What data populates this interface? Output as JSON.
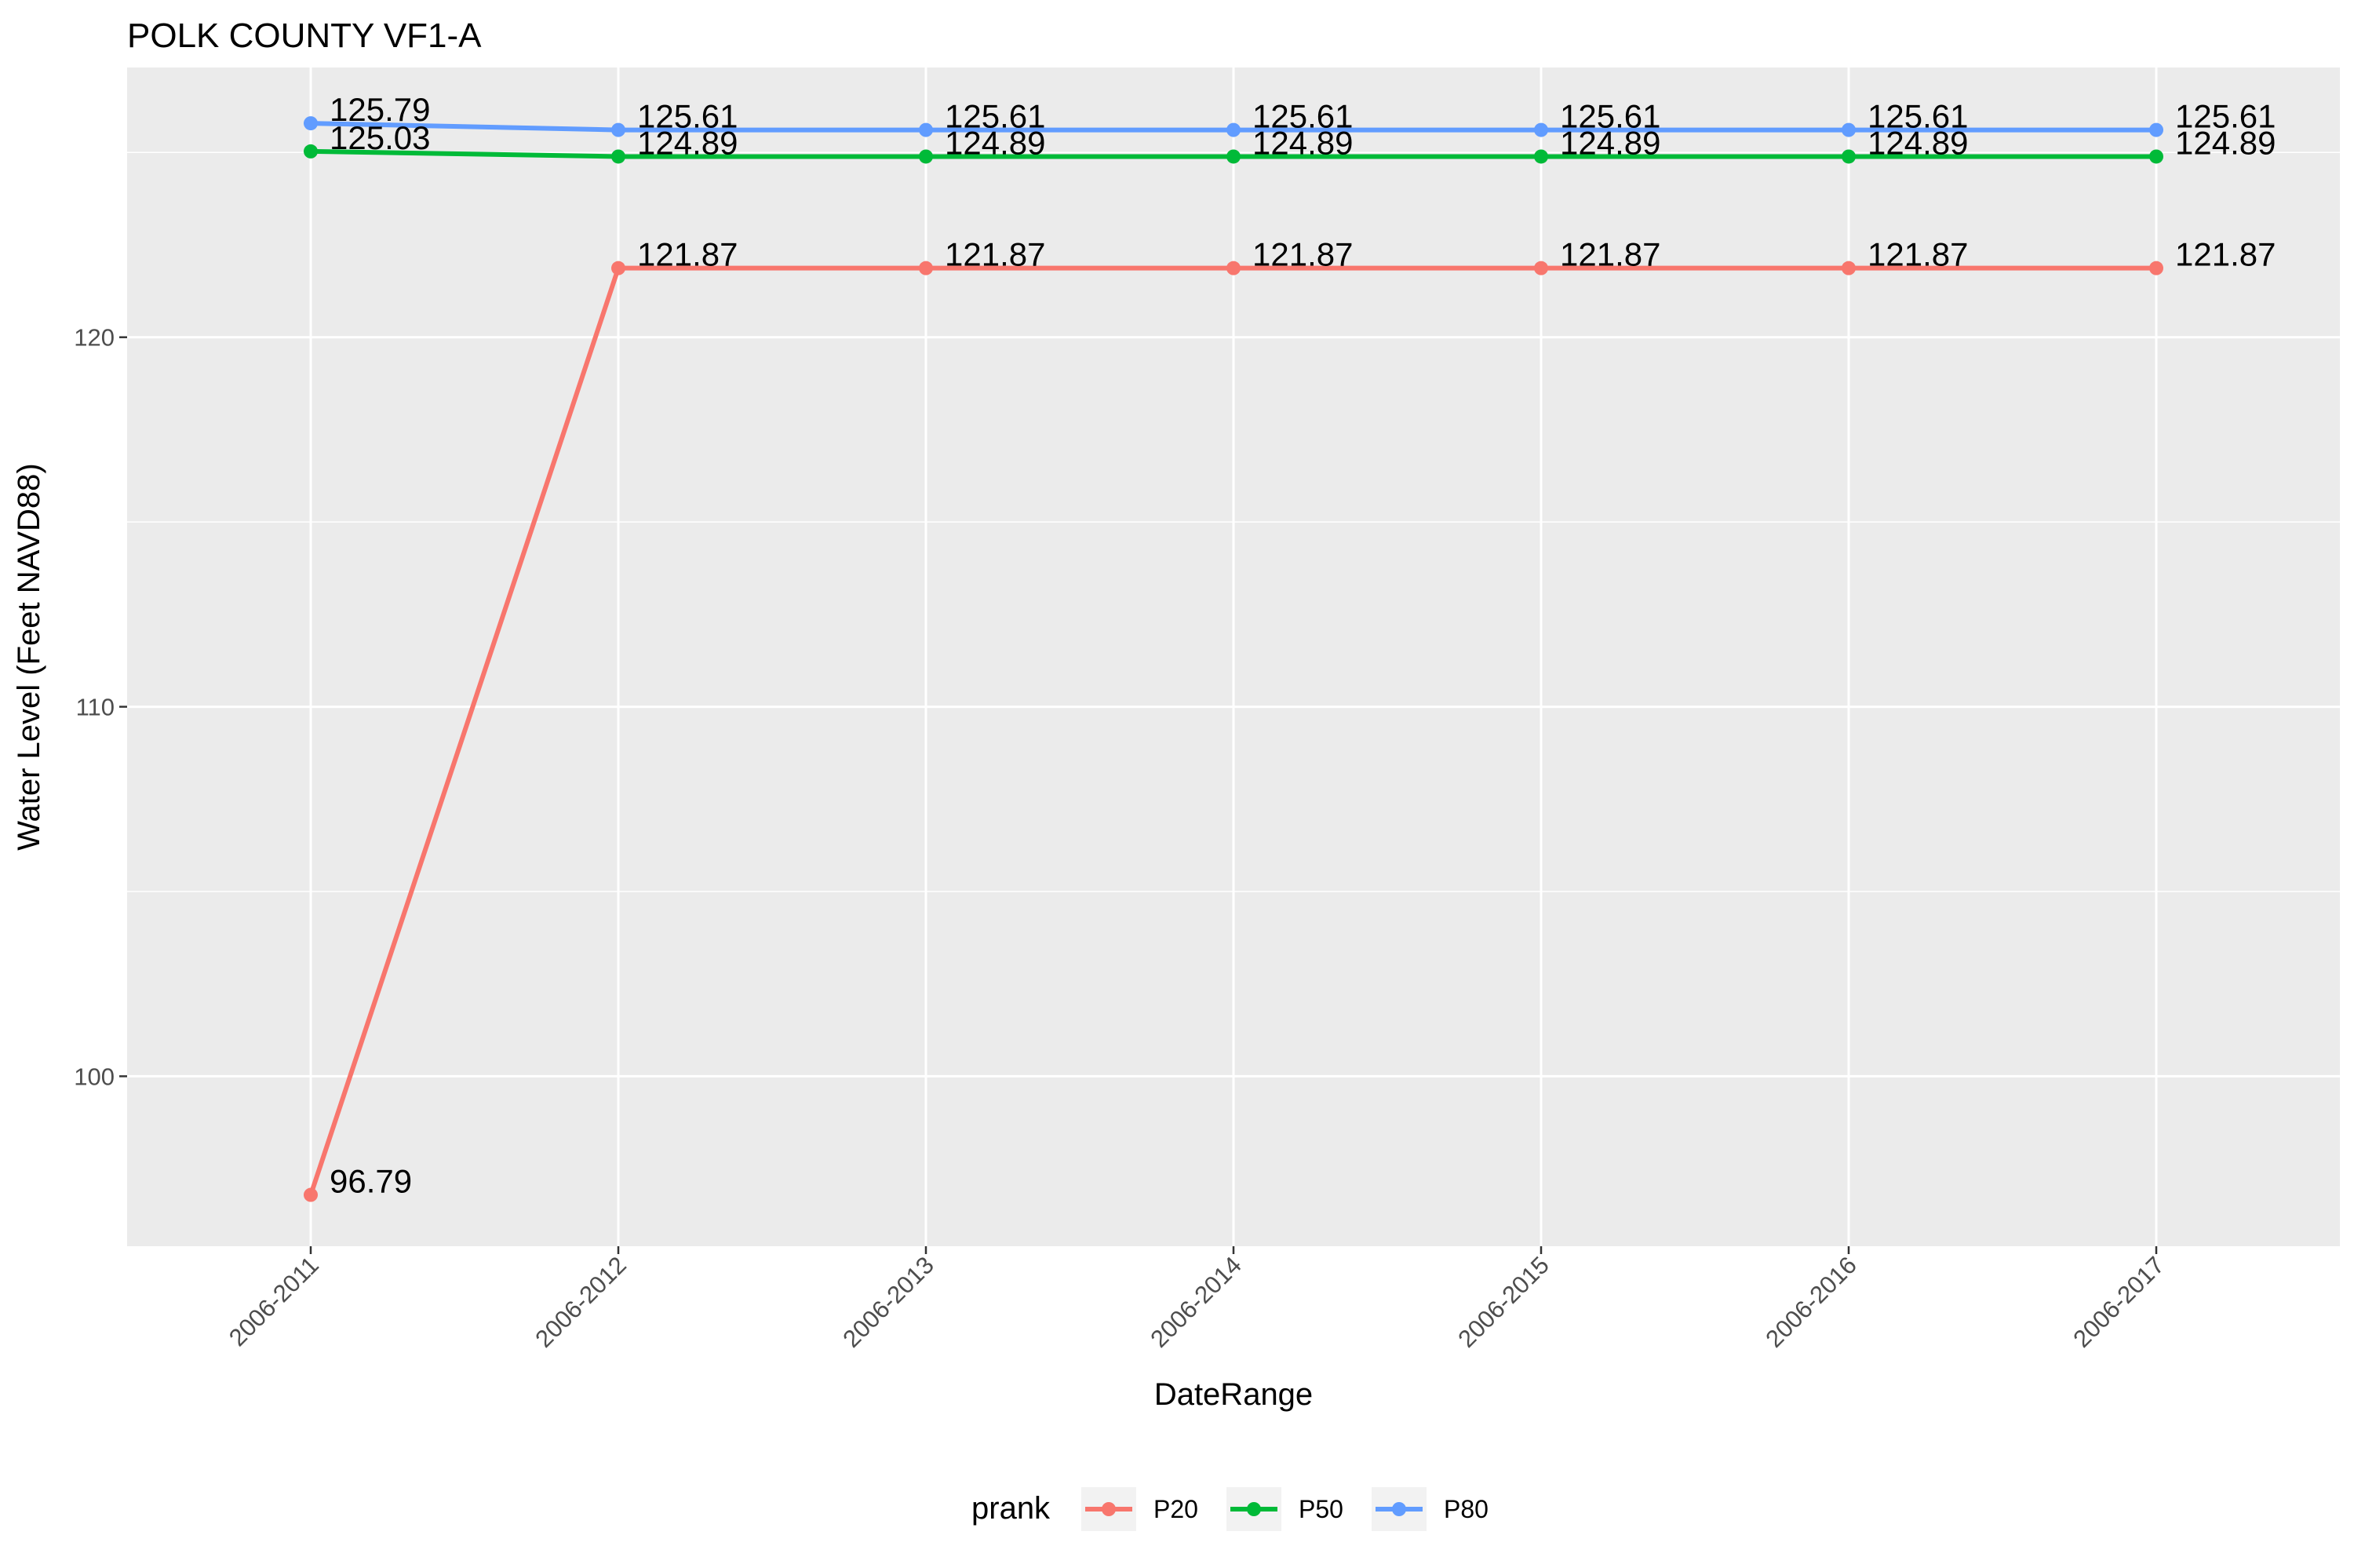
{
  "chart_data": {
    "type": "line",
    "title": "POLK COUNTY VF1-A",
    "xlabel": "DateRange",
    "ylabel": "Water Level (Feet NAVD88)",
    "categories": [
      "2006-2011",
      "2006-2012",
      "2006-2013",
      "2006-2014",
      "2006-2015",
      "2006-2016",
      "2006-2017"
    ],
    "ylim": [
      95.4,
      127.3
    ],
    "yticks": [
      100,
      110,
      120
    ],
    "grid": true,
    "legend": {
      "title": "prank",
      "position": "bottom"
    },
    "series": [
      {
        "name": "P20",
        "color": "#F8766D",
        "values": [
          96.79,
          121.87,
          121.87,
          121.87,
          121.87,
          121.87,
          121.87
        ],
        "labels": [
          "96.79",
          "121.87",
          "121.87",
          "121.87",
          "121.87",
          "121.87",
          "121.87"
        ]
      },
      {
        "name": "P50",
        "color": "#00BA38",
        "values": [
          125.03,
          124.89,
          124.89,
          124.89,
          124.89,
          124.89,
          124.89
        ],
        "labels": [
          "125.03",
          "124.89",
          "124.89",
          "124.89",
          "124.89",
          "124.89",
          "124.89"
        ]
      },
      {
        "name": "P80",
        "color": "#619CFF",
        "values": [
          125.79,
          125.61,
          125.61,
          125.61,
          125.61,
          125.61,
          125.61
        ],
        "labels": [
          "125.79",
          "125.61",
          "125.61",
          "125.61",
          "125.61",
          "125.61",
          "125.61"
        ]
      }
    ]
  }
}
